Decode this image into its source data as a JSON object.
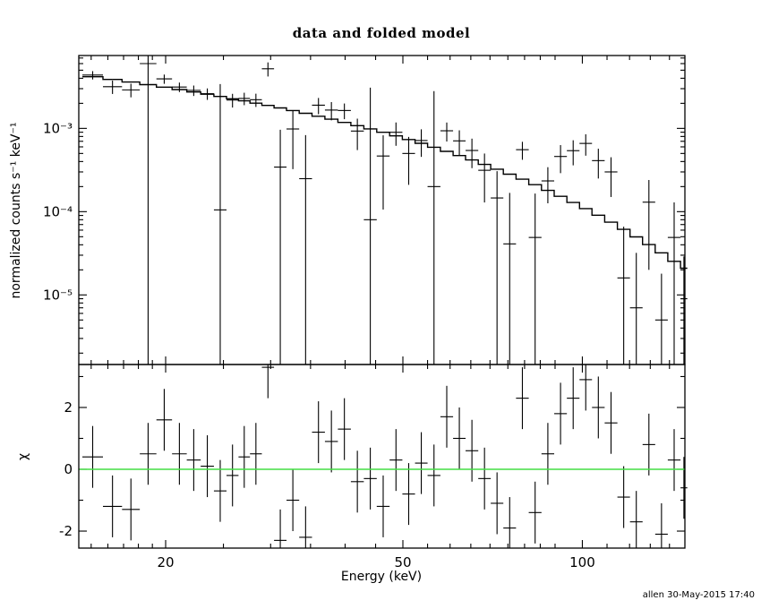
{
  "chart_data": {
    "type": "scatter",
    "title": "data and folded model",
    "xlabel": "Energy (keV)",
    "ylabel_top": "normalized counts s⁻¹ keV⁻¹",
    "ylabel_bottom": "χ",
    "timestamp": "allen 30-May-2015 17:40",
    "x_scale": "log",
    "x_range": [
      14.3,
      148.6
    ],
    "x_ticks_major": [
      {
        "value": 20,
        "label": "20"
      },
      {
        "value": 50,
        "label": "50"
      },
      {
        "value": 100,
        "label": "100"
      }
    ],
    "x_ticks_minor": [
      15,
      16,
      17,
      18,
      19,
      25,
      30,
      35,
      40,
      45,
      55,
      60,
      65,
      70,
      75,
      80,
      85,
      90,
      110,
      120,
      130,
      140
    ],
    "top_panel": {
      "y_scale": "log",
      "y_range": [
        1.46e-06,
        0.0075
      ],
      "y_ticks_major": [
        {
          "value": 1e-05,
          "label": "10⁻⁵"
        },
        {
          "value": 0.0001,
          "label": "10⁻⁴"
        },
        {
          "value": 0.001,
          "label": "10⁻³"
        }
      ]
    },
    "bottom_panel": {
      "y_scale": "linear",
      "y_range": [
        -2.55,
        3.39
      ],
      "y_ticks_major": [
        {
          "value": -2,
          "label": "-2"
        },
        {
          "value": 0,
          "label": "0"
        },
        {
          "value": 2,
          "label": "2"
        }
      ],
      "y_ticks_minor": [
        -1,
        1,
        3
      ],
      "zero_line_color": "#44dd44"
    },
    "bins": {
      "e_lo": [
        14.5,
        15.7,
        16.9,
        18.1,
        19.3,
        20.5,
        21.7,
        22.9,
        24.1,
        25.3,
        26.5,
        27.7,
        29.0,
        30.4,
        31.9,
        33.5,
        35.2,
        37.0,
        38.9,
        40.9,
        43.0,
        45.2,
        47.5,
        49.9,
        52.4,
        55.0,
        57.8,
        60.7,
        63.7,
        66.9,
        70.2,
        73.7,
        77.4,
        81.3,
        85.4,
        89.7,
        94.2,
        98.9,
        103.8,
        109.0,
        114.5,
        120.2,
        126.2,
        132.5,
        139.1,
        146.1
      ],
      "e_hi": [
        15.7,
        16.9,
        18.1,
        19.3,
        20.5,
        21.7,
        22.9,
        24.1,
        25.3,
        26.5,
        27.7,
        29.0,
        30.4,
        31.9,
        33.5,
        35.2,
        37.0,
        38.9,
        40.9,
        43.0,
        45.2,
        47.5,
        49.9,
        52.4,
        55.0,
        57.8,
        60.7,
        63.7,
        66.9,
        70.2,
        73.7,
        77.4,
        81.3,
        85.4,
        89.7,
        94.2,
        98.9,
        103.8,
        109.0,
        114.5,
        120.2,
        126.2,
        132.5,
        139.1,
        146.1,
        150.0
      ],
      "rate": [
        0.00437,
        0.00317,
        0.0029,
        0.006,
        0.00393,
        0.00314,
        0.00286,
        0.00261,
        0.000105,
        0.00219,
        0.00229,
        0.00221,
        0.0052,
        0.000343,
        0.000984,
        0.000249,
        0.0019,
        0.00166,
        0.00164,
        0.000929,
        8e-05,
        0.000466,
        0.000898,
        0.0005,
        0.000715,
        0.0002,
        0.000936,
        0.000708,
        0.000543,
        0.000314,
        0.000146,
        4.1e-05,
        0.000555,
        4.9e-05,
        0.000234,
        0.00046,
        0.00054,
        0.00066,
        0.00041,
        0.0003,
        1.6e-05,
        7e-06,
        0.00013,
        5e-06,
        4.9e-05,
        9e-06
      ],
      "rate_err": [
        0.0005,
        0.00058,
        0.00054,
        0.0065,
        0.0005,
        0.00041,
        0.00041,
        0.00041,
        0.0033,
        0.00041,
        0.00039,
        0.0004,
        0.001,
        0.00062,
        0.00066,
        0.00058,
        0.00042,
        0.00041,
        0.00035,
        0.00038,
        0.003,
        0.00036,
        0.00028,
        0.00029,
        0.00026,
        0.0026,
        0.00024,
        0.00024,
        0.00021,
        0.000185,
        0.00016,
        0.000127,
        0.000135,
        0.000116,
        0.000108,
        0.00017,
        0.00018,
        0.00019,
        0.00016,
        0.00015,
        5e-05,
        2.5e-05,
        0.00011,
        1.3e-05,
        8e-05,
        2e-05
      ],
      "model": [
        0.00417,
        0.00387,
        0.0036,
        0.00335,
        0.00313,
        0.00293,
        0.00274,
        0.00257,
        0.00242,
        0.00227,
        0.00214,
        0.00201,
        0.00189,
        0.00176,
        0.00164,
        0.00152,
        0.0014,
        0.00129,
        0.00118,
        0.00108,
        0.000987,
        0.000897,
        0.000813,
        0.000735,
        0.000662,
        0.000594,
        0.00053,
        0.000472,
        0.000418,
        0.000369,
        0.000324,
        0.000282,
        0.000245,
        0.000211,
        0.00018,
        0.000153,
        0.000129,
        0.000109,
        9.07e-05,
        7.48e-05,
        6.13e-05,
        4.98e-05,
        4.02e-05,
        3.2e-05,
        2.53e-05,
        2.09e-05
      ],
      "chi": [
        0.4,
        -1.2,
        -1.3,
        0.5,
        1.6,
        0.5,
        0.3,
        0.1,
        -0.7,
        -0.2,
        0.4,
        0.5,
        3.3,
        -2.3,
        -1.0,
        -2.2,
        1.2,
        0.9,
        1.3,
        -0.4,
        -0.3,
        -1.2,
        0.3,
        -0.8,
        0.2,
        -0.2,
        1.7,
        1.0,
        0.6,
        -0.3,
        -1.1,
        -1.9,
        2.3,
        -1.4,
        0.5,
        1.8,
        2.3,
        2.9,
        2.0,
        1.5,
        -0.9,
        -1.7,
        0.8,
        -2.1,
        0.3,
        -0.6
      ],
      "chi_err": 1
    }
  }
}
